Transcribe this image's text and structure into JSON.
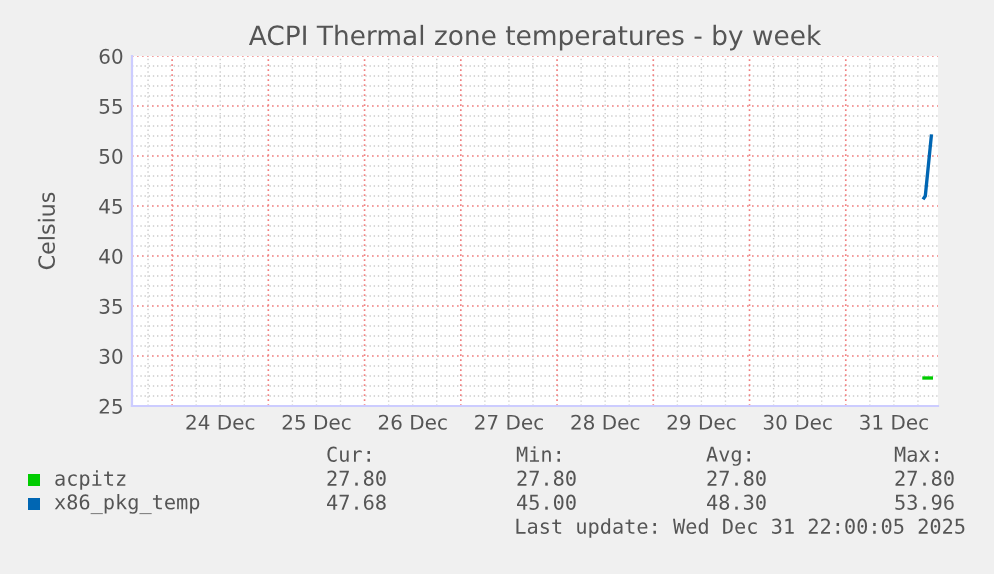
{
  "chart_data": {
    "type": "line",
    "title": "ACPI Thermal zone temperatures - by week",
    "ylabel": "Celsius",
    "xlim": [
      "2025-12-23T14:00",
      "2025-12-31T23:00"
    ],
    "xticks": [
      {
        "value": "2025-12-24T00:00",
        "label": null
      },
      {
        "value": "2025-12-24T12:00",
        "label": "24 Dec"
      },
      {
        "value": "2025-12-25T00:00",
        "label": null
      },
      {
        "value": "2025-12-25T12:00",
        "label": "25 Dec"
      },
      {
        "value": "2025-12-26T00:00",
        "label": null
      },
      {
        "value": "2025-12-26T12:00",
        "label": "26 Dec"
      },
      {
        "value": "2025-12-27T00:00",
        "label": null
      },
      {
        "value": "2025-12-27T12:00",
        "label": "27 Dec"
      },
      {
        "value": "2025-12-28T00:00",
        "label": null
      },
      {
        "value": "2025-12-28T12:00",
        "label": "28 Dec"
      },
      {
        "value": "2025-12-29T00:00",
        "label": null
      },
      {
        "value": "2025-12-29T12:00",
        "label": "29 Dec"
      },
      {
        "value": "2025-12-30T00:00",
        "label": null
      },
      {
        "value": "2025-12-30T12:00",
        "label": "30 Dec"
      },
      {
        "value": "2025-12-31T00:00",
        "label": null
      },
      {
        "value": "2025-12-31T12:00",
        "label": "31 Dec"
      }
    ],
    "ylim": [
      25,
      60
    ],
    "yticks": [
      25,
      30,
      35,
      40,
      45,
      50,
      55,
      60
    ],
    "grid": true,
    "legend": "bottom",
    "marker": "none",
    "line_style": "solid",
    "series": [
      {
        "name": "acpitz",
        "color": "#00cc00",
        "x": [
          "2025-12-31T19:30",
          "2025-12-31T21:20"
        ],
        "values": [
          27.8,
          27.8
        ]
      },
      {
        "name": "x86_pkg_temp",
        "color": "#0066b3",
        "x": [
          "2025-12-31T19:30",
          "2025-12-31T19:50",
          "2025-12-31T21:20"
        ],
        "values": [
          45.8,
          46.0,
          52.0
        ]
      }
    ],
    "annotations": [
      "Cur:",
      "Min:",
      "Avg:",
      "Max:",
      "27.80",
      "27.80",
      "27.80",
      "27.80",
      "47.68",
      "45.00",
      "48.30",
      "53.96",
      "Last update: Wed Dec 31 22:00:05 2025"
    ]
  }
}
